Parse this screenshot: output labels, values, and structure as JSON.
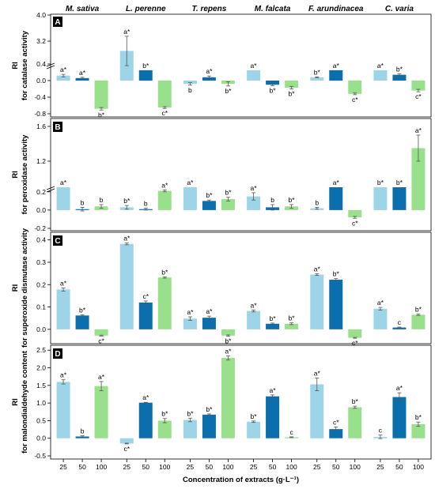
{
  "colors": {
    "c25": "#9ed4e8",
    "c50": "#0b6fae",
    "c100": "#99e08c",
    "axis": "#000000",
    "errorbar": "#555555"
  },
  "chart_data": {
    "type": "bar",
    "species": [
      "M. sativa",
      "L. perenne",
      "T. repens",
      "M. falcata",
      "F. arundinacea",
      "C. varia"
    ],
    "concentrations": [
      "25",
      "50",
      "100"
    ],
    "xlabel": "Concentration of extracts (g·L⁻¹)",
    "panels": [
      {
        "tag": "A",
        "ylabel": [
          "RI",
          "for catalase activity"
        ],
        "ylim": [
          -0.8,
          4.0
        ],
        "axis_break": true,
        "yticks": [
          "4.0",
          "3.2",
          "0.4",
          "0.0",
          "-0.4",
          "-0.8"
        ],
        "bars": [
          {
            "species": "M. sativa",
            "conc": "25",
            "value": 0.12,
            "err": 0.03,
            "label": "a*"
          },
          {
            "species": "M. sativa",
            "conc": "50",
            "value": 0.06,
            "err": 0.02,
            "label": "a*"
          },
          {
            "species": "M. sativa",
            "conc": "100",
            "value": -0.68,
            "err": 0.03,
            "label": "b*"
          },
          {
            "species": "L. perenne",
            "conc": "25",
            "value": 2.9,
            "err": 0.45,
            "label": "a*"
          },
          {
            "species": "L. perenne",
            "conc": "50",
            "value": 0.25,
            "err": 0.0,
            "label": "b*"
          },
          {
            "species": "L. perenne",
            "conc": "100",
            "value": -0.65,
            "err": 0.02,
            "label": "c*"
          },
          {
            "species": "T. repens",
            "conc": "25",
            "value": -0.08,
            "err": 0.03,
            "label": "b"
          },
          {
            "species": "T. repens",
            "conc": "50",
            "value": 0.08,
            "err": 0.03,
            "label": "a*"
          },
          {
            "species": "T. repens",
            "conc": "100",
            "value": -0.08,
            "err": 0.05,
            "label": "b*"
          },
          {
            "species": "M. falcata",
            "conc": "25",
            "value": 0.25,
            "err": 0.0,
            "label": "a*"
          },
          {
            "species": "M. falcata",
            "conc": "50",
            "value": -0.1,
            "err": 0.02,
            "label": "b*"
          },
          {
            "species": "M. falcata",
            "conc": "100",
            "value": -0.17,
            "err": 0.03,
            "label": "b*"
          },
          {
            "species": "F. arundinacea",
            "conc": "25",
            "value": 0.08,
            "err": 0.01,
            "label": "b*"
          },
          {
            "species": "F. arundinacea",
            "conc": "50",
            "value": 0.25,
            "err": 0.0,
            "label": "a*"
          },
          {
            "species": "F. arundinacea",
            "conc": "100",
            "value": -0.32,
            "err": 0.02,
            "label": "c*"
          },
          {
            "species": "C. varia",
            "conc": "25",
            "value": 0.25,
            "err": 0.0,
            "label": "a*"
          },
          {
            "species": "C. varia",
            "conc": "50",
            "value": 0.14,
            "err": 0.02,
            "label": "b*"
          },
          {
            "species": "C. varia",
            "conc": "100",
            "value": -0.24,
            "err": 0.03,
            "label": "c*"
          }
        ]
      },
      {
        "tag": "B",
        "ylabel": [
          "RI",
          "for peroxidase activity"
        ],
        "ylim": [
          -0.2,
          1.6
        ],
        "axis_break": true,
        "yticks": [
          "1.6",
          "1.2",
          "0.2",
          "0.0",
          "-0.2"
        ],
        "bars": [
          {
            "species": "M. sativa",
            "conc": "25",
            "value": 0.25,
            "err": 0.0,
            "label": "a*"
          },
          {
            "species": "M. sativa",
            "conc": "50",
            "value": 0.01,
            "err": 0.02,
            "label": "b"
          },
          {
            "species": "M. sativa",
            "conc": "100",
            "value": 0.04,
            "err": 0.02,
            "label": "b"
          },
          {
            "species": "L. perenne",
            "conc": "25",
            "value": 0.03,
            "err": 0.02,
            "label": "b*"
          },
          {
            "species": "L. perenne",
            "conc": "50",
            "value": 0.01,
            "err": 0.01,
            "label": "b"
          },
          {
            "species": "L. perenne",
            "conc": "100",
            "value": 0.21,
            "err": 0.01,
            "label": "a*"
          },
          {
            "species": "T. repens",
            "conc": "25",
            "value": 0.25,
            "err": 0.0,
            "label": "a*"
          },
          {
            "species": "T. repens",
            "conc": "50",
            "value": 0.1,
            "err": 0.01,
            "label": "b*"
          },
          {
            "species": "T. repens",
            "conc": "100",
            "value": 0.12,
            "err": 0.02,
            "label": "b*"
          },
          {
            "species": "M. falcata",
            "conc": "25",
            "value": 0.15,
            "err": 0.04,
            "label": "a*"
          },
          {
            "species": "M. falcata",
            "conc": "50",
            "value": 0.03,
            "err": 0.03,
            "label": "b"
          },
          {
            "species": "M. falcata",
            "conc": "100",
            "value": 0.04,
            "err": 0.02,
            "label": "b*"
          },
          {
            "species": "F. arundinacea",
            "conc": "25",
            "value": 0.02,
            "err": 0.01,
            "label": "b"
          },
          {
            "species": "F. arundinacea",
            "conc": "50",
            "value": 0.25,
            "err": 0.0,
            "label": "a*"
          },
          {
            "species": "F. arundinacea",
            "conc": "100",
            "value": -0.08,
            "err": 0.01,
            "label": "c*"
          },
          {
            "species": "C. varia",
            "conc": "25",
            "value": 0.25,
            "err": 0.0,
            "label": "b*"
          },
          {
            "species": "C. varia",
            "conc": "50",
            "value": 0.25,
            "err": 0.0,
            "label": "b*"
          },
          {
            "species": "C. varia",
            "conc": "100",
            "value": 1.35,
            "err": 0.15,
            "label": "a*"
          }
        ]
      },
      {
        "tag": "C",
        "ylabel": [
          "RI",
          "for superoxide dismutase activity"
        ],
        "ylim": [
          -0.05,
          0.42
        ],
        "axis_break": false,
        "yticks": [
          "0.4",
          "0.3",
          "0.2",
          "0.1",
          "0.0"
        ],
        "bars": [
          {
            "species": "M. sativa",
            "conc": "25",
            "value": 0.178,
            "err": 0.007,
            "label": "a*"
          },
          {
            "species": "M. sativa",
            "conc": "50",
            "value": 0.062,
            "err": 0.003,
            "label": "b*"
          },
          {
            "species": "M. sativa",
            "conc": "100",
            "value": -0.028,
            "err": 0.002,
            "label": "c*"
          },
          {
            "species": "L. perenne",
            "conc": "25",
            "value": 0.382,
            "err": 0.004,
            "label": "a*"
          },
          {
            "species": "L. perenne",
            "conc": "50",
            "value": 0.12,
            "err": 0.007,
            "label": "c*"
          },
          {
            "species": "L. perenne",
            "conc": "100",
            "value": 0.232,
            "err": 0.003,
            "label": "b*"
          },
          {
            "species": "T. repens",
            "conc": "25",
            "value": 0.048,
            "err": 0.008,
            "label": "a*"
          },
          {
            "species": "T. repens",
            "conc": "50",
            "value": 0.052,
            "err": 0.007,
            "label": "a*"
          },
          {
            "species": "T. repens",
            "conc": "100",
            "value": -0.028,
            "err": 0.003,
            "label": "b*"
          },
          {
            "species": "M. falcata",
            "conc": "25",
            "value": 0.082,
            "err": 0.004,
            "label": "a*"
          },
          {
            "species": "M. falcata",
            "conc": "50",
            "value": 0.025,
            "err": 0.003,
            "label": "b*"
          },
          {
            "species": "M. falcata",
            "conc": "100",
            "value": 0.025,
            "err": 0.004,
            "label": "b*"
          },
          {
            "species": "F. arundinacea",
            "conc": "25",
            "value": 0.245,
            "err": 0.004,
            "label": "a*"
          },
          {
            "species": "F. arundinacea",
            "conc": "50",
            "value": 0.222,
            "err": 0.005,
            "label": "b*"
          },
          {
            "species": "F. arundinacea",
            "conc": "100",
            "value": -0.038,
            "err": 0.002,
            "label": "c*"
          },
          {
            "species": "C. varia",
            "conc": "25",
            "value": 0.092,
            "err": 0.006,
            "label": "a*"
          },
          {
            "species": "C. varia",
            "conc": "50",
            "value": 0.008,
            "err": 0.002,
            "label": "c"
          },
          {
            "species": "C. varia",
            "conc": "100",
            "value": 0.065,
            "err": 0.003,
            "label": "b*"
          }
        ]
      },
      {
        "tag": "D",
        "ylabel": [
          "RI",
          "for malondialdehyde content"
        ],
        "ylim": [
          -0.5,
          2.55
        ],
        "axis_break": false,
        "yticks": [
          "2.5",
          "2.0",
          "1.5",
          "1.0",
          "0.5",
          "0.0",
          "-0.5"
        ],
        "bars": [
          {
            "species": "M. sativa",
            "conc": "25",
            "value": 1.6,
            "err": 0.06,
            "label": "a*"
          },
          {
            "species": "M. sativa",
            "conc": "50",
            "value": 0.05,
            "err": 0.02,
            "label": "b"
          },
          {
            "species": "M. sativa",
            "conc": "100",
            "value": 1.48,
            "err": 0.13,
            "label": "a*"
          },
          {
            "species": "L. perenne",
            "conc": "25",
            "value": -0.15,
            "err": 0.01,
            "label": "c*"
          },
          {
            "species": "L. perenne",
            "conc": "50",
            "value": 1.01,
            "err": 0.01,
            "label": "a*"
          },
          {
            "species": "L. perenne",
            "conc": "100",
            "value": 0.5,
            "err": 0.06,
            "label": "b*"
          },
          {
            "species": "T. repens",
            "conc": "25",
            "value": 0.52,
            "err": 0.05,
            "label": "b*"
          },
          {
            "species": "T. repens",
            "conc": "50",
            "value": 0.67,
            "err": 0.02,
            "label": "b*"
          },
          {
            "species": "T. repens",
            "conc": "100",
            "value": 2.28,
            "err": 0.06,
            "label": "a*"
          },
          {
            "species": "M. falcata",
            "conc": "25",
            "value": 0.47,
            "err": 0.02,
            "label": "b*"
          },
          {
            "species": "M. falcata",
            "conc": "50",
            "value": 1.19,
            "err": 0.04,
            "label": "a*"
          },
          {
            "species": "M. falcata",
            "conc": "100",
            "value": 0.03,
            "err": 0.01,
            "label": "c"
          },
          {
            "species": "F. arundinacea",
            "conc": "25",
            "value": 1.53,
            "err": 0.18,
            "label": "a*"
          },
          {
            "species": "F. arundinacea",
            "conc": "50",
            "value": 0.26,
            "err": 0.06,
            "label": "c*"
          },
          {
            "species": "F. arundinacea",
            "conc": "100",
            "value": 0.88,
            "err": 0.03,
            "label": "b*"
          },
          {
            "species": "C. varia",
            "conc": "25",
            "value": 0.04,
            "err": 0.05,
            "label": "c"
          },
          {
            "species": "C. varia",
            "conc": "50",
            "value": 1.17,
            "err": 0.12,
            "label": "a*"
          },
          {
            "species": "C. varia",
            "conc": "100",
            "value": 0.4,
            "err": 0.06,
            "label": "b*"
          }
        ]
      }
    ]
  }
}
